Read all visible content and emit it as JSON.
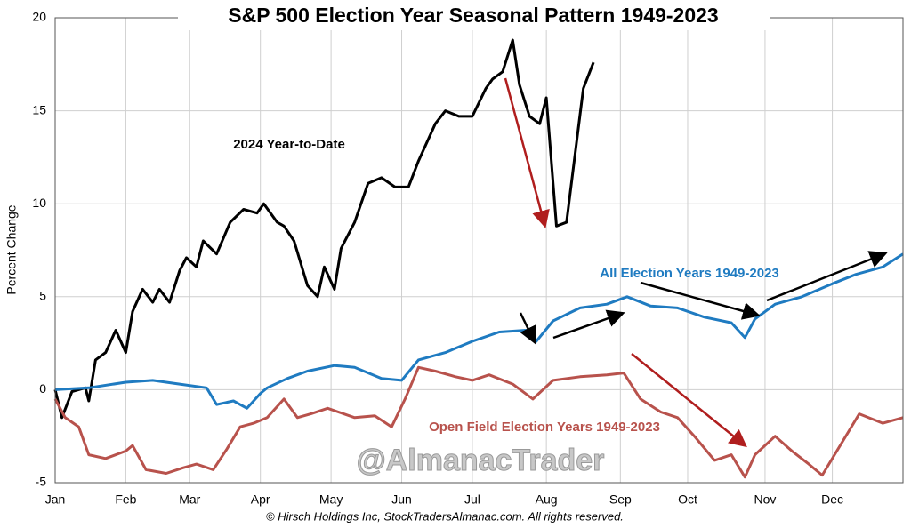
{
  "chart_data": {
    "type": "line",
    "title": "S&P 500 Election Year Seasonal Pattern 1949-2023",
    "y_label": "Percent Change",
    "watermark": "@AlmanacTrader",
    "footer": "© Hirsch Holdings Inc, StockTradersAlmanac.com. All rights reserved.",
    "xlim": [
      0,
      252
    ],
    "xticks": [
      {
        "value": 0,
        "label": "Jan"
      },
      {
        "value": 21,
        "label": "Feb"
      },
      {
        "value": 40,
        "label": "Mar"
      },
      {
        "value": 61,
        "label": "Apr"
      },
      {
        "value": 82,
        "label": "May"
      },
      {
        "value": 103,
        "label": "Jun"
      },
      {
        "value": 124,
        "label": "Jul"
      },
      {
        "value": 146,
        "label": "Aug"
      },
      {
        "value": 168,
        "label": "Sep"
      },
      {
        "value": 188,
        "label": "Oct"
      },
      {
        "value": 211,
        "label": "Nov"
      },
      {
        "value": 231,
        "label": "Dec"
      }
    ],
    "ylim": [
      -5,
      20
    ],
    "yticks": [
      -5,
      0,
      5,
      10,
      15,
      20
    ],
    "grid": true,
    "series": [
      {
        "name": "2024 Year-to-Date",
        "color": "#000000",
        "x": [
          0,
          2,
          5,
          9,
          10,
          12,
          15,
          18,
          21,
          23,
          26,
          29,
          31,
          34,
          37,
          39,
          42,
          44,
          48,
          52,
          56,
          60,
          62,
          66,
          68,
          71,
          75,
          78,
          80,
          83,
          85,
          89,
          93,
          97,
          101,
          105,
          108,
          113,
          116,
          120,
          124,
          128,
          130,
          133,
          136,
          138,
          141,
          144,
          146,
          149,
          152,
          154,
          157,
          160
        ],
        "values": [
          0,
          -1.5,
          -0.1,
          0.1,
          -0.6,
          1.6,
          2,
          3.2,
          2,
          4.2,
          5.4,
          4.7,
          5.4,
          4.7,
          6.4,
          7.1,
          6.6,
          8.0,
          7.3,
          9.0,
          9.7,
          9.5,
          10.0,
          9.0,
          8.8,
          8.0,
          5.6,
          5.0,
          6.6,
          5.4,
          7.6,
          9.0,
          11.1,
          11.4,
          10.9,
          10.9,
          12.3,
          14.3,
          15,
          14.7,
          14.7,
          16.2,
          16.7,
          17.1,
          18.8,
          16.4,
          14.7,
          14.3,
          15.7,
          8.8,
          9.0,
          11.9,
          16.2,
          17.6
        ]
      },
      {
        "name": "All Election Years 1949-2023",
        "color": "#1f7bc1",
        "x": [
          0,
          10,
          21,
          29,
          37,
          45,
          48,
          53,
          57,
          61,
          63,
          69,
          75,
          83,
          89,
          97,
          103,
          108,
          116,
          124,
          132,
          140,
          143,
          148,
          156,
          164,
          170,
          177,
          185,
          193,
          201,
          205,
          208,
          214,
          222,
          231,
          238,
          246,
          252
        ],
        "values": [
          0,
          0.1,
          0.4,
          0.5,
          0.3,
          0.1,
          -0.8,
          -0.6,
          -1,
          -0.2,
          0.1,
          0.6,
          1.0,
          1.3,
          1.2,
          0.6,
          0.5,
          1.6,
          2.0,
          2.6,
          3.1,
          3.2,
          2.6,
          3.7,
          4.4,
          4.6,
          5.0,
          4.5,
          4.4,
          3.9,
          3.6,
          2.8,
          3.8,
          4.6,
          5.0,
          5.7,
          6.2,
          6.6,
          7.3
        ]
      },
      {
        "name": "Open Field Election Years 1949-2023",
        "color": "#b8524c",
        "x": [
          0,
          3,
          7,
          10,
          15,
          21,
          23,
          27,
          33,
          38,
          42,
          47,
          51,
          55,
          59,
          63,
          68,
          72,
          76,
          81,
          89,
          95,
          100,
          104,
          108,
          113,
          119,
          124,
          129,
          136,
          142,
          148,
          156,
          164,
          169,
          174,
          180,
          185,
          190,
          196,
          201,
          205,
          208,
          214,
          219,
          224,
          228,
          234,
          239,
          246,
          252
        ],
        "values": [
          -0.5,
          -1.5,
          -2,
          -3.5,
          -3.7,
          -3.3,
          -3.0,
          -4.3,
          -4.5,
          -4.2,
          -4.0,
          -4.3,
          -3.2,
          -2.0,
          -1.8,
          -1.5,
          -0.5,
          -1.5,
          -1.3,
          -1.0,
          -1.5,
          -1.4,
          -2.0,
          -0.5,
          1.2,
          1.0,
          0.7,
          0.5,
          0.8,
          0.3,
          -0.5,
          0.5,
          0.7,
          0.8,
          0.9,
          -0.5,
          -1.2,
          -1.5,
          -2.5,
          -3.8,
          -3.5,
          -4.7,
          -3.5,
          -2.5,
          -3.3,
          -4.0,
          -4.6,
          -2.8,
          -1.3,
          -1.8,
          -1.5
        ]
      }
    ]
  }
}
